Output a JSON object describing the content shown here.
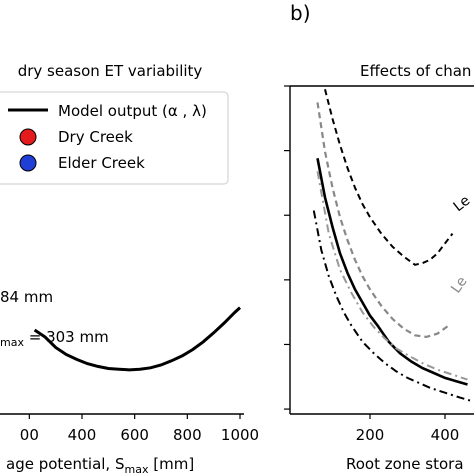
{
  "chart_data": [
    {
      "panel": "a",
      "type": "line",
      "title": "dry season ET variability",
      "xlabel_prefix": "age potential, S",
      "xlabel_sub": "max",
      "xlabel_suffix": " [mm]",
      "xticks": [
        "00",
        "400",
        "600",
        "800",
        "1000"
      ],
      "xlim": [
        220,
        1000
      ],
      "legend": [
        {
          "label": "Model output (α , λ)",
          "marker": "line",
          "color": "#000000"
        },
        {
          "label": "Dry Creek",
          "marker": "circle",
          "color": "#e41a1c"
        },
        {
          "label": "Elder Creek",
          "marker": "circle",
          "color": "#1f3fd6"
        }
      ],
      "annotations": [
        {
          "text_before": "",
          "sub": "",
          "text_after": "84 mm"
        },
        {
          "text_before": "",
          "sub": "max",
          "text_after": " = 303 mm"
        }
      ],
      "series": [
        {
          "x": [
            220,
            260,
            300,
            340,
            380,
            420,
            460,
            500,
            540,
            580,
            620,
            660,
            700,
            740,
            780,
            820,
            860,
            900,
            940,
            980,
            1000
          ],
          "y": [
            0.32,
            0.31,
            0.295,
            0.285,
            0.278,
            0.272,
            0.268,
            0.265,
            0.264,
            0.263,
            0.264,
            0.266,
            0.27,
            0.276,
            0.283,
            0.292,
            0.303,
            0.316,
            0.33,
            0.345,
            0.352
          ]
        }
      ]
    },
    {
      "panel": "b",
      "panel_label": "b)",
      "type": "line",
      "title": "Effects of chan",
      "xlabel": "Root zone stora",
      "xticks": [
        "200",
        "400"
      ],
      "xlim": [
        0,
        470
      ],
      "ylim": [
        0,
        1
      ],
      "curve_labels": [
        "Le",
        "Le"
      ],
      "series": [
        {
          "style": "solid-black",
          "x": [
            60,
            80,
            100,
            120,
            140,
            160,
            180,
            200,
            220,
            250,
            280,
            310,
            340,
            370,
            400,
            430,
            460
          ],
          "y": [
            0.78,
            0.66,
            0.57,
            0.49,
            0.43,
            0.38,
            0.34,
            0.3,
            0.27,
            0.22,
            0.185,
            0.16,
            0.14,
            0.125,
            0.11,
            0.1,
            0.09
          ]
        },
        {
          "style": "dashed-black",
          "x": [
            80,
            100,
            120,
            140,
            160,
            180,
            200,
            230,
            260,
            290,
            320,
            340,
            360,
            380,
            400,
            420
          ],
          "y": [
            0.99,
            0.9,
            0.82,
            0.75,
            0.69,
            0.64,
            0.6,
            0.55,
            0.51,
            0.48,
            0.455,
            0.46,
            0.47,
            0.49,
            0.52,
            0.55
          ]
        },
        {
          "style": "dashed-gray",
          "x": [
            60,
            80,
            100,
            120,
            140,
            160,
            180,
            200,
            230,
            260,
            290,
            320,
            350,
            380,
            410
          ],
          "y": [
            0.95,
            0.8,
            0.69,
            0.6,
            0.53,
            0.47,
            0.42,
            0.38,
            0.33,
            0.29,
            0.26,
            0.24,
            0.235,
            0.245,
            0.27
          ]
        },
        {
          "style": "dashdot-black",
          "x": [
            50,
            70,
            90,
            110,
            130,
            150,
            180,
            210,
            240,
            270,
            300,
            330,
            360,
            400,
            440,
            470
          ],
          "y": [
            0.62,
            0.5,
            0.42,
            0.36,
            0.31,
            0.27,
            0.22,
            0.185,
            0.155,
            0.13,
            0.11,
            0.095,
            0.08,
            0.065,
            0.05,
            0.04
          ]
        },
        {
          "style": "dashdot-gray",
          "x": [
            60,
            90,
            120,
            150,
            180,
            210,
            240,
            270,
            300,
            340,
            380,
            420,
            460
          ],
          "y": [
            0.74,
            0.55,
            0.44,
            0.37,
            0.31,
            0.265,
            0.23,
            0.2,
            0.18,
            0.155,
            0.135,
            0.12,
            0.105
          ]
        }
      ]
    }
  ]
}
